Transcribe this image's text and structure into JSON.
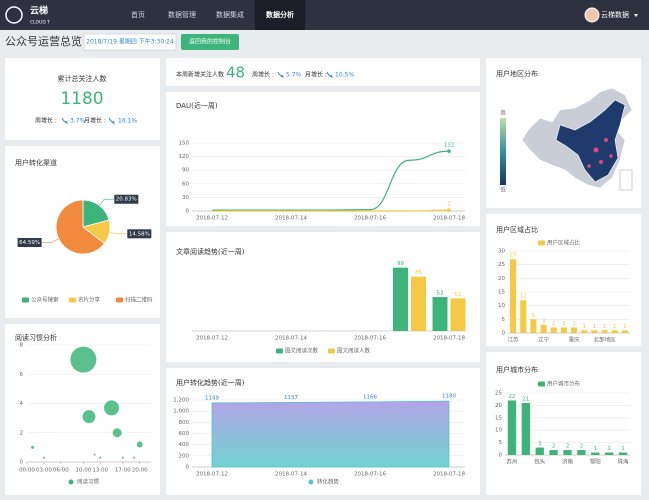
{
  "nav": {
    "brand": "云梯",
    "brand_sub": "CLOUD T",
    "items": [
      "首页",
      "数据管理",
      "数据集成",
      "数据分析"
    ],
    "active": 3,
    "user": "云梯数据"
  },
  "header": {
    "title": "公众号运营总览",
    "datetime": "2018/7/19 星期四 下午3:30:24",
    "button": "返回我的控制台"
  },
  "total_followers": {
    "label": "累计总关注人数",
    "value": 1180,
    "week_label": "周增长 :",
    "week": "3.7%",
    "month_label": "月增长 :",
    "month": "16.1%"
  },
  "new_followers": {
    "label": "本周新增关注人数",
    "value": 48,
    "week_label": "周增长 :",
    "week": "5.7%",
    "month_label": "月增长 :",
    "month": "10.5%"
  },
  "chart_data": [
    {
      "type": "map",
      "title": "用户地区分布",
      "visual_map": {
        "high": "高",
        "low": "低"
      }
    },
    {
      "type": "pie",
      "title": "用户转化渠道",
      "categories": [
        "公众号搜索",
        "名片分享",
        "扫描二维码"
      ],
      "values": [
        20.83,
        14.58,
        64.59
      ],
      "value_labels": [
        "20.83%",
        "14.58%",
        "64.59%"
      ],
      "colors": [
        "#3db57a",
        "#f5c945",
        "#f28a3d"
      ]
    },
    {
      "type": "bubble",
      "title": "阅读习惯分析",
      "xlim": [
        0,
        22
      ],
      "xticks": [
        {
          "value": 0,
          "label": "00:00"
        },
        {
          "value": 3,
          "label": "03:00"
        },
        {
          "value": 6,
          "label": "06:00"
        },
        {
          "value": 10,
          "label": "10:00"
        },
        {
          "value": 13,
          "label": "13:00"
        },
        {
          "value": 17,
          "label": "17:00"
        },
        {
          "value": 20,
          "label": "20:00"
        }
      ],
      "ylim": [
        0,
        8
      ],
      "yticks": [
        0,
        2,
        4,
        6,
        8
      ],
      "series": [
        {
          "name": "阅读习惯",
          "color": "#3db57a",
          "x": [
            1,
            3,
            10,
            11,
            12,
            13,
            15,
            16,
            17,
            19,
            20
          ],
          "values": [
            1,
            0.3,
            7,
            3.1,
            0.5,
            0.3,
            3.7,
            2,
            0.3,
            0.3,
            1.2
          ],
          "sizes": [
            3,
            2,
            26,
            13,
            2,
            2,
            15,
            9,
            2,
            2,
            6
          ]
        }
      ]
    },
    {
      "type": "line",
      "title": "DAU(近一周)",
      "categories": [
        "2018-07-12",
        null,
        "2018-07-14",
        null,
        "2018-07-16",
        null,
        "2018-07-18"
      ],
      "ylim": [
        0,
        150
      ],
      "yticks": [
        0,
        30,
        60,
        90,
        120,
        150
      ],
      "series": [
        {
          "color": "#3db57a",
          "values": [
            2,
            2,
            2,
            2,
            3,
            112,
            132
          ]
        },
        {
          "color": "#f5c945",
          "values": [
            0,
            0,
            0,
            0,
            0,
            0,
            2
          ]
        }
      ]
    },
    {
      "type": "bar",
      "title": "文章阅读趋势(近一周)",
      "categories": [
        "2018-07-12",
        null,
        "2018-07-14",
        null,
        "2018-07-16",
        null,
        "2018-07-18"
      ],
      "ylim": [
        0,
        100
      ],
      "series": [
        {
          "name": "图文阅读次数",
          "color": "#3db57a",
          "values": [
            0,
            0,
            0,
            0,
            0,
            99,
            53
          ]
        },
        {
          "name": "图文阅读人数",
          "color": "#f5c945",
          "values": [
            0,
            0,
            0,
            0,
            0,
            85,
            51
          ]
        }
      ]
    },
    {
      "type": "area",
      "title": "用户转化趋势(近一周)",
      "categories": [
        "2018-07-12",
        "2018-07-14",
        "2018-07-16",
        "2018-07-18"
      ],
      "ylim": [
        0,
        1200
      ],
      "yticks": [
        0,
        200,
        400,
        600,
        800,
        {
          "value": 1000,
          "label": "1,000"
        },
        {
          "value": 1200,
          "label": "1,200"
        }
      ],
      "series": [
        {
          "name": "转化趋势",
          "color": "#55c3c8",
          "values": [
            1149,
            1157,
            1166,
            1180
          ]
        }
      ]
    },
    {
      "type": "bar",
      "title": "用户区域占比",
      "categories": [
        "江苏",
        null,
        null,
        "辽宁",
        null,
        null,
        "重庆",
        null,
        null,
        "北部地区",
        null,
        null
      ],
      "ylim": [
        0,
        30
      ],
      "yticks": [
        0,
        5,
        10,
        15,
        20,
        25,
        30
      ],
      "series": [
        {
          "name": "用户区域占比",
          "color": "#f5c945",
          "values": [
            27,
            12,
            5,
            3,
            2,
            2,
            2,
            1,
            1,
            1,
            1,
            1
          ]
        }
      ]
    },
    {
      "type": "bar",
      "title": "用户城市分布",
      "categories": [
        "苏州",
        null,
        "包头",
        null,
        "济南",
        null,
        "鄂阳",
        null,
        "珠海"
      ],
      "ylim": [
        0,
        25
      ],
      "yticks": [
        0,
        5,
        10,
        15,
        20,
        25
      ],
      "series": [
        {
          "name": "用户城市分布",
          "color": "#3db57a",
          "values": [
            22,
            21,
            3,
            2,
            2,
            2,
            1,
            1,
            1
          ]
        }
      ]
    }
  ]
}
